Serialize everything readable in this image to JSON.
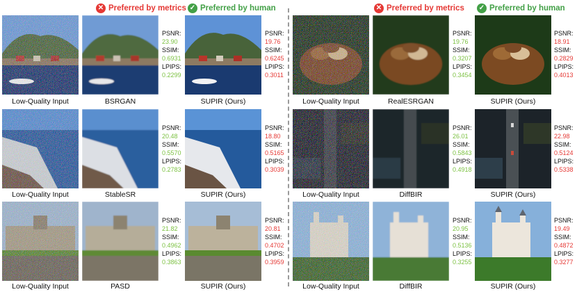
{
  "headers": {
    "metrics": "Preferred by metrics",
    "human": "Preferred by human"
  },
  "metric_labels": {
    "psnr": "PSNR:",
    "ssim": "SSIM:",
    "lpips": "LPIPS:"
  },
  "colors": {
    "metric_good": "#7cc142",
    "metric_bad": "#e53935",
    "header_metrics": "#e53935",
    "header_human": "#43a047"
  },
  "rows": [
    {
      "input_label": "Low-Quality Input",
      "metric_method": "BSRGAN",
      "metric_scores": {
        "psnr": "23.90",
        "ssim": "0.6931",
        "lpips": "0.2299"
      },
      "ours_label": "SUPIR (Ours)",
      "ours_scores": {
        "psnr": "19.76",
        "ssim": "0.6245",
        "lpips": "0.3011"
      }
    },
    {
      "input_label": "Low-Quality Input",
      "metric_method": "StableSR",
      "metric_scores": {
        "psnr": "20.48",
        "ssim": "0.5570",
        "lpips": "0.2783"
      },
      "ours_label": "SUPIR (Ours)",
      "ours_scores": {
        "psnr": "18.80",
        "ssim": "0.5165",
        "lpips": "0.3039"
      }
    },
    {
      "input_label": "Low-Quality Input",
      "metric_method": "PASD",
      "metric_scores": {
        "psnr": "21.82",
        "ssim": "0.4962",
        "lpips": "0.3863"
      },
      "ours_label": "SUPIR (Ours)",
      "ours_scores": {
        "psnr": "20.81",
        "ssim": "0.4702",
        "lpips": "0.3959"
      }
    },
    {
      "input_label": "Low-Quality Input",
      "metric_method": "RealESRGAN",
      "metric_scores": {
        "psnr": "19.76",
        "ssim": "0.3207",
        "lpips": "0.3454"
      },
      "ours_label": "SUPIR (Ours)",
      "ours_scores": {
        "psnr": "18.91",
        "ssim": "0.2829",
        "lpips": "0.4013"
      }
    },
    {
      "input_label": "Low-Quality Input",
      "metric_method": "DiffBIR",
      "metric_scores": {
        "psnr": "26.01",
        "ssim": "0.5843",
        "lpips": "0.4918"
      },
      "ours_label": "SUPIR (Ours)",
      "ours_scores": {
        "psnr": "22.98",
        "ssim": "0.5124",
        "lpips": "0.5338"
      }
    },
    {
      "input_label": "Low-Quality Input",
      "metric_method": "DiffBIR",
      "metric_scores": {
        "psnr": "20.95",
        "ssim": "0.5136",
        "lpips": "0.3255"
      },
      "ours_label": "SUPIR (Ours)",
      "ours_scores": {
        "psnr": "19.49",
        "ssim": "0.4872",
        "lpips": "0.3277"
      }
    }
  ]
}
